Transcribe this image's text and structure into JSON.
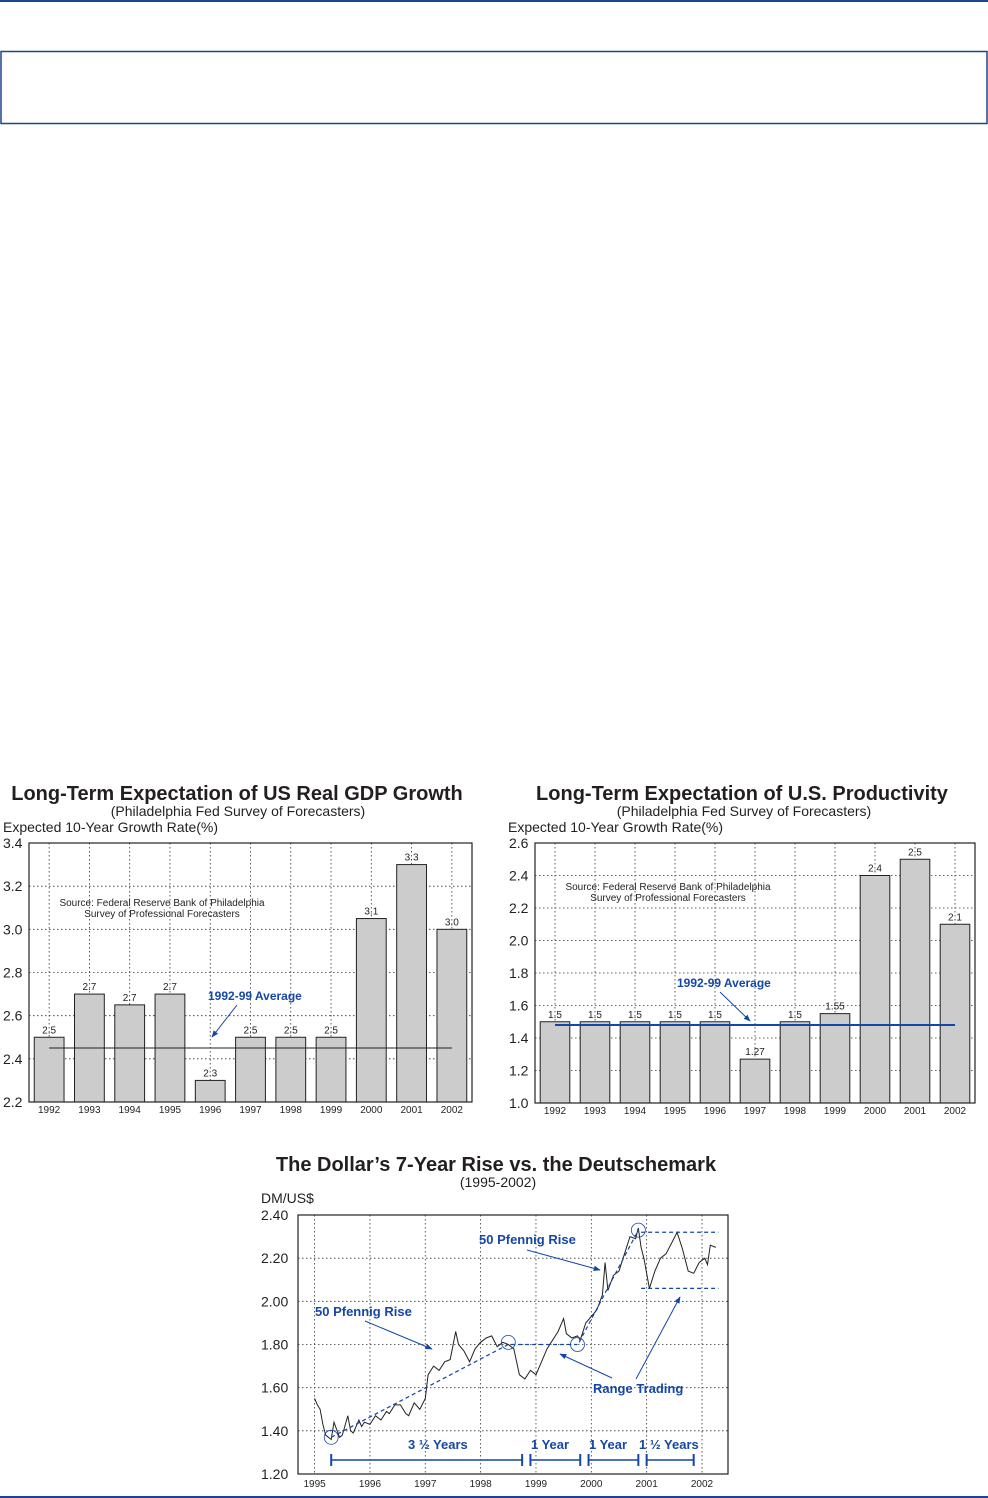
{
  "colors": {
    "rule": "#1a4590",
    "bar": "#cccccc",
    "accent": "#1547a8",
    "ink": "#231f20"
  },
  "chart_data": [
    {
      "type": "bar",
      "title": "Long-Term Expectation of US Real GDP Growth",
      "subtitle": "(Philadelphia Fed Survey of Forecasters)",
      "ylabel": "Expected 10-Year Growth Rate(%)",
      "xlabel": "",
      "categories": [
        "1992",
        "1993",
        "1994",
        "1995",
        "1996",
        "1997",
        "1998",
        "1999",
        "2000",
        "2001",
        "2002"
      ],
      "values": [
        2.5,
        2.7,
        2.65,
        2.7,
        2.3,
        2.5,
        2.5,
        2.5,
        3.05,
        3.3,
        3.0
      ],
      "data_labels": [
        "2.5",
        "2.7",
        "2.7",
        "2.7",
        "2.3",
        "2.5",
        "2.5",
        "2.5",
        "3.1",
        "3.3",
        "3.0"
      ],
      "ylim": [
        2.2,
        3.4
      ],
      "yticks": [
        "2.2",
        "2.4",
        "2.6",
        "2.8",
        "3.0",
        "3.2",
        "3.4"
      ],
      "grid": true,
      "average": {
        "label": "1992-99 Average",
        "value": 2.45
      },
      "source": [
        "Source: Federal Reserve Bank of Philadelphia",
        "Survey of Professional Forecasters"
      ]
    },
    {
      "type": "bar",
      "title": "Long-Term Expectation of U.S. Productivity",
      "subtitle": "(Philadelphia Fed Survey of Forecasters)",
      "ylabel": "Expected 10-Year Growth Rate(%)",
      "xlabel": "",
      "categories": [
        "1992",
        "1993",
        "1994",
        "1995",
        "1996",
        "1997",
        "1998",
        "1999",
        "2000",
        "2001",
        "2002"
      ],
      "values": [
        1.5,
        1.5,
        1.5,
        1.5,
        1.5,
        1.27,
        1.5,
        1.55,
        2.4,
        2.5,
        2.1
      ],
      "data_labels": [
        "1.5",
        "1.5",
        "1.5",
        "1.5",
        "1.5",
        "1.27",
        "1.5",
        "1.55",
        "2.4",
        "2.5",
        "2.1"
      ],
      "ylim": [
        1.0,
        2.6
      ],
      "yticks": [
        "1.0",
        "1.2",
        "1.4",
        "1.6",
        "1.8",
        "2.0",
        "2.2",
        "2.4",
        "2.6"
      ],
      "grid": true,
      "average": {
        "label": "1992-99 Average",
        "value": 1.48
      },
      "source": [
        "Source: Federal Reserve Bank of Philadelphia",
        "Survey of Professional Forecasters"
      ]
    },
    {
      "type": "line",
      "title": "The Dollar’s 7-Year Rise vs. the Deutschemark",
      "subtitle": "(1995-2002)",
      "ylabel": "DM/US$",
      "xlabel": "",
      "xlim": [
        1994.7,
        2002.47
      ],
      "ylim": [
        1.2,
        2.4
      ],
      "xticks": [
        "1995",
        "1996",
        "1997",
        "1998",
        "1999",
        "2000",
        "2001",
        "2002"
      ],
      "yticks": [
        "1.20",
        "1.40",
        "1.60",
        "1.80",
        "2.00",
        "2.20",
        "2.40"
      ],
      "grid": true,
      "series": [
        {
          "name": "DM/US$",
          "x": [
            1995.0,
            1995.05,
            1995.1,
            1995.15,
            1995.2,
            1995.3,
            1995.35,
            1995.45,
            1995.5,
            1995.6,
            1995.65,
            1995.7,
            1995.8,
            1995.85,
            1995.9,
            1996.0,
            1996.1,
            1996.2,
            1996.3,
            1996.35,
            1996.45,
            1996.55,
            1996.65,
            1996.7,
            1996.8,
            1996.9,
            1997.0,
            1997.05,
            1997.15,
            1997.25,
            1997.35,
            1997.45,
            1997.55,
            1997.6,
            1997.7,
            1997.8,
            1997.9,
            1998.0,
            1998.1,
            1998.2,
            1998.3,
            1998.4,
            1998.5,
            1998.6,
            1998.7,
            1998.8,
            1998.9,
            1999.0,
            1999.1,
            1999.2,
            1999.3,
            1999.4,
            1999.5,
            1999.55,
            1999.65,
            1999.75,
            1999.8,
            1999.9,
            2000.0,
            2000.1,
            2000.2,
            2000.25,
            2000.3,
            2000.4,
            2000.5,
            2000.6,
            2000.7,
            2000.8,
            2000.85,
            2000.9,
            2000.95,
            2001.05,
            2001.15,
            2001.25,
            2001.35,
            2001.45,
            2001.55,
            2001.65,
            2001.75,
            2001.85,
            2001.95,
            2002.05,
            2002.1,
            2002.15,
            2002.25
          ],
          "y": [
            1.55,
            1.52,
            1.5,
            1.43,
            1.38,
            1.36,
            1.44,
            1.37,
            1.38,
            1.47,
            1.4,
            1.39,
            1.45,
            1.42,
            1.44,
            1.43,
            1.47,
            1.45,
            1.49,
            1.48,
            1.52,
            1.52,
            1.48,
            1.47,
            1.53,
            1.5,
            1.55,
            1.66,
            1.7,
            1.68,
            1.72,
            1.73,
            1.86,
            1.8,
            1.77,
            1.72,
            1.78,
            1.81,
            1.83,
            1.84,
            1.79,
            1.81,
            1.8,
            1.78,
            1.66,
            1.64,
            1.68,
            1.66,
            1.72,
            1.78,
            1.82,
            1.86,
            1.92,
            1.85,
            1.83,
            1.84,
            1.82,
            1.9,
            1.93,
            1.96,
            2.03,
            2.18,
            2.05,
            2.12,
            2.14,
            2.22,
            2.3,
            2.29,
            2.34,
            2.25,
            2.2,
            2.06,
            2.14,
            2.2,
            2.22,
            2.27,
            2.32,
            2.24,
            2.14,
            2.13,
            2.18,
            2.2,
            2.17,
            2.26,
            2.25
          ]
        }
      ],
      "annotations": {
        "rise_label": "50 Pfennig Rise",
        "range_label": "Range Trading",
        "spans": [
          "3 ½ Years",
          "1 Year",
          "1 Year",
          "1 ½ Years"
        ]
      }
    }
  ]
}
